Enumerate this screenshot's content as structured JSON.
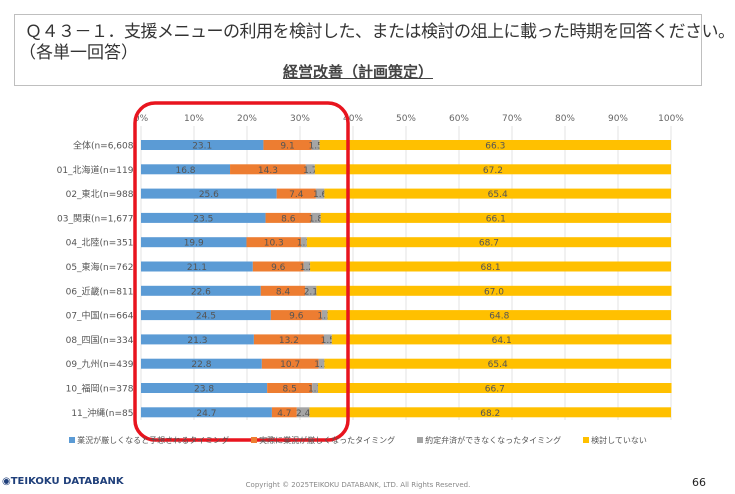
{
  "header": {
    "question": "Ｑ４３－１．支援メニューの利用を検討した、または検討の俎上に載った時期を回答ください。",
    "note": "（各単一回答）",
    "subtitle": "経営改善（計画策定）"
  },
  "chart_data": {
    "type": "bar",
    "orientation": "horizontal-stacked-100",
    "xlim": [
      0,
      100
    ],
    "x_ticks": [
      "0%",
      "10%",
      "20%",
      "30%",
      "40%",
      "50%",
      "60%",
      "70%",
      "80%",
      "90%",
      "100%"
    ],
    "grid": true,
    "legend_position": "bottom",
    "categories": [
      "全体(n=6,608)",
      "01_北海道(n=119)",
      "02_東北(n=988)",
      "03_関東(n=1,677)",
      "04_北陸(n=351)",
      "05_東海(n=762)",
      "06_近畿(n=811)",
      "07_中国(n=664)",
      "08_四国(n=334)",
      "09_九州(n=439)",
      "10_福岡(n=378)",
      "11_沖縄(n=85)"
    ],
    "series": [
      {
        "name": "業況が厳しくなると予想されるタイミング",
        "color": "#5b9bd5",
        "values": [
          23.1,
          16.8,
          25.6,
          23.5,
          19.9,
          21.1,
          22.6,
          24.5,
          21.3,
          22.8,
          23.8,
          24.7
        ]
      },
      {
        "name": "実際に業況が厳しくなったタイミング",
        "color": "#ed7d31",
        "values": [
          9.1,
          14.3,
          7.4,
          8.6,
          10.3,
          9.6,
          8.4,
          9.6,
          13.2,
          10.7,
          8.5,
          4.7
        ]
      },
      {
        "name": "約定弁済ができなくなったタイミング",
        "color": "#a5a5a5",
        "values": [
          1.5,
          1.7,
          1.6,
          1.8,
          1.1,
          1.2,
          2.1,
          1.1,
          1.5,
          1.1,
          1.1,
          2.4
        ]
      },
      {
        "name": "検討していない",
        "color": "#ffc000",
        "values": [
          66.3,
          67.2,
          65.4,
          66.1,
          68.7,
          68.1,
          67.0,
          64.8,
          64.1,
          65.4,
          66.7,
          68.2
        ]
      }
    ],
    "highlight_color": "#e8141e"
  },
  "footer": {
    "logo": "TEIKOKU DATABANK",
    "copyright": "Copyright © 2025TEIKOKU DATABANK, LTD. All Rights Reserved.",
    "page": "66"
  }
}
